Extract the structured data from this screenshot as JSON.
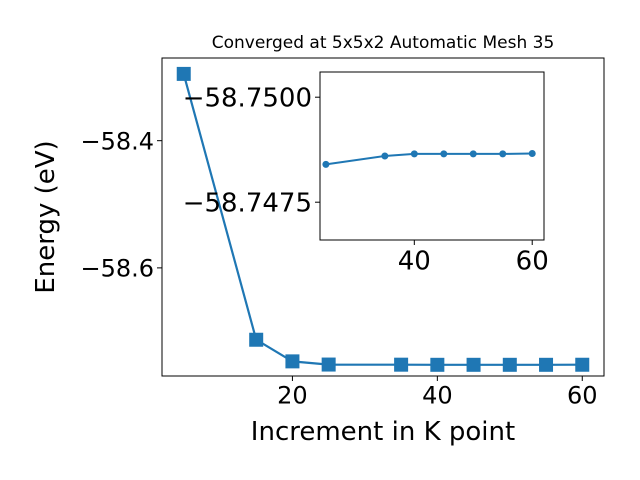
{
  "chart_data": [
    {
      "type": "line",
      "title": "Converged at 5x5x2 Automatic Mesh 35",
      "xlabel": "Increment in K point",
      "ylabel": "Energy (eV)",
      "xlim": [
        2,
        63
      ],
      "ylim": [
        -58.77,
        -58.27
      ],
      "xticks": [
        20,
        40,
        60
      ],
      "yticks": [
        -58.6,
        -58.4
      ],
      "ytick_labels": [
        "−58.6",
        "−58.4"
      ],
      "xtick_labels": [
        "20",
        "40",
        "60"
      ],
      "marker": "square",
      "color": "#1f77b4",
      "grid": false,
      "x": [
        5,
        15,
        20,
        25,
        35,
        40,
        45,
        50,
        55,
        60
      ],
      "y": [
        -58.295,
        -58.713,
        -58.747,
        -58.752,
        -58.7522,
        -58.7524,
        -58.7524,
        -58.7524,
        -58.7524,
        -58.7523
      ]
    },
    {
      "type": "line",
      "xlim": [
        24,
        62
      ],
      "ylim": [
        -58.7466,
        -58.7506
      ],
      "xticks": [
        40,
        60
      ],
      "yticks": [
        -58.75,
        -58.7475
      ],
      "ytick_labels": [
        "−58.7500",
        "−58.7475"
      ],
      "xtick_labels": [
        "40",
        "60"
      ],
      "marker": "circle",
      "color": "#1f77b4",
      "grid": false,
      "x": [
        25,
        35,
        40,
        45,
        50,
        55,
        60
      ],
      "y": [
        -58.7484,
        -58.7486,
        -58.74865,
        -58.74865,
        -58.74865,
        -58.74865,
        -58.74866
      ]
    }
  ]
}
